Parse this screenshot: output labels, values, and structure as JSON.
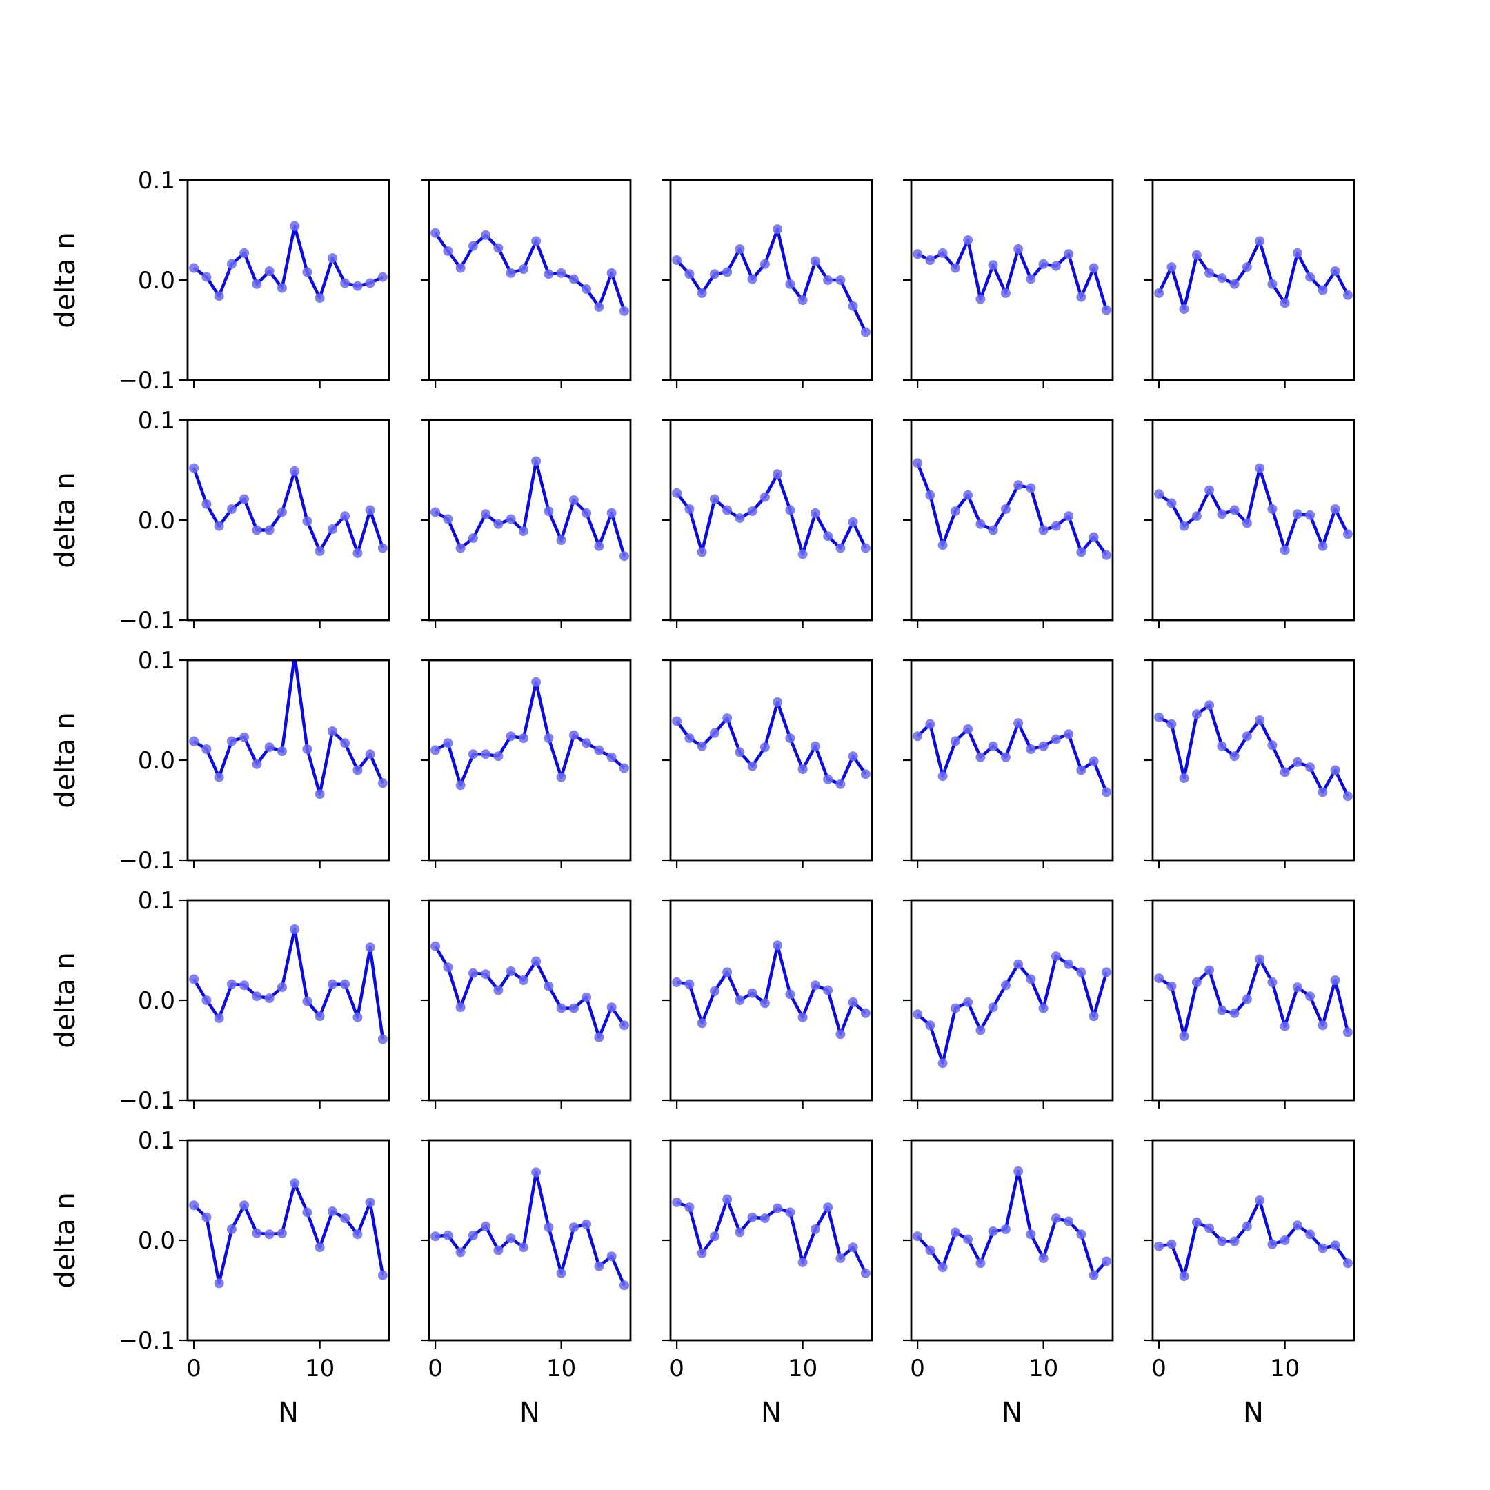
{
  "chart_data": {
    "type": "line",
    "layout": "grid",
    "rows": 5,
    "cols": 5,
    "xlabel": "N",
    "ylabel": "delta n",
    "ylim": [
      -0.1,
      0.1
    ],
    "xlim": [
      -0.5,
      15.5
    ],
    "yticks": [
      -0.1,
      0.0,
      0.1
    ],
    "ytick_labels": [
      "−0.1",
      "0.0",
      "0.1"
    ],
    "xticks": [
      0,
      10
    ],
    "xtick_labels": [
      "0",
      "10"
    ],
    "grid": false,
    "marker": "circle",
    "colors": {
      "line": "#0a0ae6",
      "marker": "#6a6af0"
    },
    "x": [
      0,
      1,
      2,
      3,
      4,
      5,
      6,
      7,
      8,
      9,
      10,
      11,
      12,
      13,
      14,
      15
    ],
    "panels": [
      {
        "values": [
          0.012,
          0.003,
          -0.016,
          0.016,
          0.027,
          -0.004,
          0.009,
          -0.008,
          0.054,
          0.008,
          -0.018,
          0.022,
          -0.003,
          -0.006,
          -0.003,
          0.003
        ]
      },
      {
        "values": [
          0.047,
          0.029,
          0.012,
          0.034,
          0.045,
          0.032,
          0.007,
          0.011,
          0.039,
          0.006,
          0.007,
          0.001,
          -0.009,
          -0.027,
          0.007,
          -0.031
        ]
      },
      {
        "values": [
          0.02,
          0.006,
          -0.013,
          0.006,
          0.008,
          0.031,
          0.001,
          0.016,
          0.051,
          -0.004,
          -0.02,
          0.019,
          0.0,
          0.0,
          -0.026,
          -0.052
        ]
      },
      {
        "values": [
          0.026,
          0.02,
          0.027,
          0.012,
          0.04,
          -0.019,
          0.015,
          -0.013,
          0.031,
          0.001,
          0.016,
          0.014,
          0.026,
          -0.017,
          0.012,
          -0.03
        ]
      },
      {
        "values": [
          -0.013,
          0.013,
          -0.029,
          0.025,
          0.007,
          0.002,
          -0.004,
          0.013,
          0.039,
          -0.004,
          -0.023,
          0.027,
          0.003,
          -0.01,
          0.009,
          -0.015
        ]
      },
      {
        "values": [
          0.052,
          0.016,
          -0.006,
          0.011,
          0.021,
          -0.01,
          -0.01,
          0.008,
          0.049,
          -0.001,
          -0.031,
          -0.009,
          0.004,
          -0.033,
          0.01,
          -0.028
        ]
      },
      {
        "values": [
          0.008,
          0.001,
          -0.028,
          -0.018,
          0.006,
          -0.004,
          0.001,
          -0.011,
          0.059,
          0.009,
          -0.02,
          0.02,
          0.007,
          -0.026,
          0.007,
          -0.036
        ]
      },
      {
        "values": [
          0.027,
          0.011,
          -0.032,
          0.021,
          0.01,
          0.002,
          0.009,
          0.023,
          0.046,
          0.01,
          -0.034,
          0.007,
          -0.016,
          -0.028,
          -0.002,
          -0.028
        ]
      },
      {
        "values": [
          0.057,
          0.025,
          -0.025,
          0.009,
          0.025,
          -0.004,
          -0.01,
          0.011,
          0.035,
          0.032,
          -0.01,
          -0.006,
          0.004,
          -0.032,
          -0.017,
          -0.035
        ]
      },
      {
        "values": [
          0.026,
          0.017,
          -0.006,
          0.004,
          0.03,
          0.006,
          0.01,
          -0.003,
          0.052,
          0.011,
          -0.03,
          0.006,
          0.005,
          -0.026,
          0.011,
          -0.014
        ]
      },
      {
        "values": [
          0.019,
          0.011,
          -0.017,
          0.019,
          0.023,
          -0.004,
          0.013,
          0.009,
          0.105,
          0.011,
          -0.034,
          0.029,
          0.017,
          -0.01,
          0.006,
          -0.023
        ]
      },
      {
        "values": [
          0.01,
          0.017,
          -0.025,
          0.006,
          0.006,
          0.004,
          0.024,
          0.022,
          0.078,
          0.022,
          -0.017,
          0.025,
          0.017,
          0.01,
          0.003,
          -0.008
        ]
      },
      {
        "values": [
          0.039,
          0.022,
          0.014,
          0.027,
          0.042,
          0.008,
          -0.006,
          0.013,
          0.058,
          0.022,
          -0.009,
          0.014,
          -0.019,
          -0.024,
          0.004,
          -0.014
        ]
      },
      {
        "values": [
          0.024,
          0.036,
          -0.016,
          0.019,
          0.031,
          0.003,
          0.014,
          0.003,
          0.037,
          0.011,
          0.014,
          0.021,
          0.026,
          -0.01,
          -0.001,
          -0.032
        ]
      },
      {
        "values": [
          0.043,
          0.036,
          -0.018,
          0.046,
          0.055,
          0.014,
          0.004,
          0.024,
          0.04,
          0.015,
          -0.012,
          -0.002,
          -0.007,
          -0.032,
          -0.01,
          -0.036
        ]
      },
      {
        "values": [
          0.021,
          0.0,
          -0.018,
          0.016,
          0.015,
          0.004,
          0.002,
          0.013,
          0.071,
          -0.001,
          -0.016,
          0.016,
          0.016,
          -0.017,
          0.053,
          -0.039
        ]
      },
      {
        "values": [
          0.054,
          0.033,
          -0.007,
          0.027,
          0.026,
          0.01,
          0.029,
          0.02,
          0.039,
          0.014,
          -0.008,
          -0.008,
          0.003,
          -0.037,
          -0.007,
          -0.025
        ]
      },
      {
        "values": [
          0.018,
          0.016,
          -0.023,
          0.009,
          0.028,
          0.0,
          0.007,
          -0.003,
          0.055,
          0.006,
          -0.017,
          0.015,
          0.01,
          -0.034,
          -0.002,
          -0.013
        ]
      },
      {
        "values": [
          -0.014,
          -0.025,
          -0.063,
          -0.008,
          -0.002,
          -0.03,
          -0.007,
          0.015,
          0.036,
          0.021,
          -0.008,
          0.044,
          0.036,
          0.028,
          -0.016,
          0.028
        ]
      },
      {
        "values": [
          0.022,
          0.014,
          -0.036,
          0.018,
          0.03,
          -0.01,
          -0.013,
          0.001,
          0.041,
          0.018,
          -0.026,
          0.013,
          0.004,
          -0.025,
          0.02,
          -0.032
        ]
      },
      {
        "values": [
          0.035,
          0.023,
          -0.043,
          0.011,
          0.035,
          0.007,
          0.006,
          0.007,
          0.057,
          0.028,
          -0.007,
          0.029,
          0.022,
          0.006,
          0.038,
          -0.035
        ]
      },
      {
        "values": [
          0.004,
          0.005,
          -0.012,
          0.005,
          0.014,
          -0.01,
          0.002,
          -0.007,
          0.068,
          0.013,
          -0.033,
          0.013,
          0.016,
          -0.026,
          -0.016,
          -0.045
        ]
      },
      {
        "values": [
          0.038,
          0.033,
          -0.013,
          0.004,
          0.041,
          0.008,
          0.023,
          0.022,
          0.032,
          0.028,
          -0.022,
          0.011,
          0.033,
          -0.018,
          -0.007,
          -0.033
        ]
      },
      {
        "values": [
          0.004,
          -0.01,
          -0.027,
          0.008,
          0.001,
          -0.023,
          0.009,
          0.011,
          0.069,
          0.006,
          -0.018,
          0.022,
          0.019,
          0.006,
          -0.035,
          -0.021
        ]
      },
      {
        "values": [
          -0.006,
          -0.004,
          -0.036,
          0.018,
          0.012,
          -0.001,
          -0.001,
          0.014,
          0.04,
          -0.004,
          0.0,
          0.015,
          0.006,
          -0.008,
          -0.005,
          -0.023
        ]
      }
    ]
  }
}
